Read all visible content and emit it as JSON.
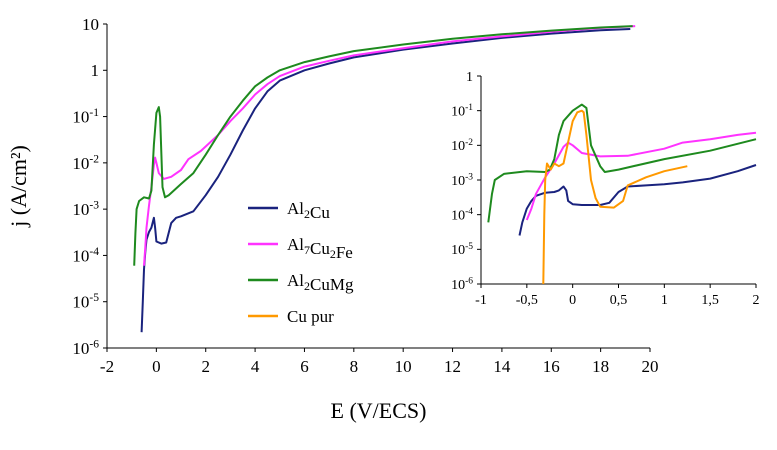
{
  "chart_data": [
    {
      "type": "line",
      "scale_y": "log",
      "xlabel": "E (V/ECS)",
      "ylabel": "j (A/cm²)",
      "xlim": [
        -2,
        20
      ],
      "ylim": [
        1e-06,
        10
      ],
      "x_ticks": [
        "-2",
        "0",
        "2",
        "4",
        "6",
        "8",
        "10",
        "12",
        "14",
        "16",
        "18",
        "20"
      ],
      "y_ticks": [
        {
          "base": "10",
          "exp": "-6"
        },
        {
          "base": "10",
          "exp": "-5"
        },
        {
          "base": "10",
          "exp": "-4"
        },
        {
          "base": "10",
          "exp": "-3"
        },
        {
          "base": "10",
          "exp": "-2"
        },
        {
          "base": "10",
          "exp": "-1"
        },
        {
          "base": "1",
          "exp": ""
        },
        {
          "base": "10",
          "exp": ""
        }
      ],
      "grid": false,
      "legend_position": "center",
      "legend": [
        {
          "parts": [
            {
              "t": "Al"
            },
            {
              "t": "2",
              "sub": true
            },
            {
              "t": "Cu"
            }
          ],
          "color": "#1a237e"
        },
        {
          "parts": [
            {
              "t": "Al"
            },
            {
              "t": "7",
              "sub": true
            },
            {
              "t": "Cu"
            },
            {
              "t": "2",
              "sub": true
            },
            {
              "t": "Fe"
            }
          ],
          "color": "#ff33ff"
        },
        {
          "parts": [
            {
              "t": "Al"
            },
            {
              "t": "2",
              "sub": true
            },
            {
              "t": "CuMg"
            }
          ],
          "color": "#1e8a1e"
        },
        {
          "parts": [
            {
              "t": "Cu pur"
            }
          ],
          "color": "#ff9900"
        }
      ],
      "series": [
        {
          "color": "#1a237e",
          "points": [
            [
              -0.6,
              2.2e-06
            ],
            [
              -0.55,
              1e-05
            ],
            [
              -0.5,
              5e-05
            ],
            [
              -0.45,
              0.00012
            ],
            [
              -0.4,
              0.00022
            ],
            [
              -0.3,
              0.00032
            ],
            [
              -0.2,
              0.0004
            ],
            [
              -0.1,
              0.00065
            ],
            [
              -0.05,
              0.0004
            ],
            [
              0,
              0.0002
            ],
            [
              0.2,
              0.00018
            ],
            [
              0.4,
              0.00019
            ],
            [
              0.6,
              0.0005
            ],
            [
              0.8,
              0.00065
            ],
            [
              1,
              0.0007
            ],
            [
              1.5,
              0.0009
            ],
            [
              2,
              0.002
            ],
            [
              2.5,
              0.005
            ],
            [
              3,
              0.015
            ],
            [
              3.5,
              0.05
            ],
            [
              4,
              0.15
            ],
            [
              4.5,
              0.35
            ],
            [
              5,
              0.6
            ],
            [
              6,
              1.0
            ],
            [
              7,
              1.4
            ],
            [
              8,
              1.9
            ],
            [
              10,
              2.8
            ],
            [
              12,
              3.8
            ],
            [
              14,
              5
            ],
            [
              16,
              6.2
            ],
            [
              18,
              7.3
            ],
            [
              19.2,
              7.8
            ]
          ]
        },
        {
          "color": "#ff33ff",
          "points": [
            [
              -0.5,
              6e-05
            ],
            [
              -0.45,
              0.00015
            ],
            [
              -0.4,
              0.0004
            ],
            [
              -0.3,
              0.0012
            ],
            [
              -0.2,
              0.003
            ],
            [
              -0.1,
              0.009
            ],
            [
              -0.05,
              0.013
            ],
            [
              0,
              0.01
            ],
            [
              0.1,
              0.006
            ],
            [
              0.3,
              0.0045
            ],
            [
              0.6,
              0.005
            ],
            [
              1,
              0.007
            ],
            [
              1.3,
              0.012
            ],
            [
              1.8,
              0.018
            ],
            [
              2.5,
              0.04
            ],
            [
              3,
              0.08
            ],
            [
              3.5,
              0.15
            ],
            [
              4,
              0.3
            ],
            [
              4.5,
              0.5
            ],
            [
              5,
              0.75
            ],
            [
              6,
              1.2
            ],
            [
              7,
              1.6
            ],
            [
              8,
              2.1
            ],
            [
              10,
              3
            ],
            [
              12,
              4.2
            ],
            [
              14,
              5.4
            ],
            [
              16,
              6.8
            ],
            [
              18,
              8.2
            ],
            [
              19.4,
              9
            ]
          ]
        },
        {
          "color": "#1e8a1e",
          "points": [
            [
              -0.9,
              6e-05
            ],
            [
              -0.85,
              0.0003
            ],
            [
              -0.8,
              0.001
            ],
            [
              -0.7,
              0.0015
            ],
            [
              -0.5,
              0.0018
            ],
            [
              -0.3,
              0.0017
            ],
            [
              -0.2,
              0.0025
            ],
            [
              -0.1,
              0.025
            ],
            [
              0,
              0.12
            ],
            [
              0.1,
              0.16
            ],
            [
              0.15,
              0.1
            ],
            [
              0.25,
              0.003
            ],
            [
              0.35,
              0.0018
            ],
            [
              0.5,
              0.002
            ],
            [
              1,
              0.0035
            ],
            [
              1.5,
              0.006
            ],
            [
              2,
              0.015
            ],
            [
              2.5,
              0.04
            ],
            [
              3,
              0.1
            ],
            [
              3.5,
              0.22
            ],
            [
              4,
              0.45
            ],
            [
              4.5,
              0.7
            ],
            [
              5,
              1.0
            ],
            [
              6,
              1.5
            ],
            [
              7,
              2
            ],
            [
              8,
              2.6
            ],
            [
              10,
              3.6
            ],
            [
              12,
              4.8
            ],
            [
              14,
              6
            ],
            [
              16,
              7.2
            ],
            [
              18,
              8.4
            ],
            [
              19.3,
              9
            ]
          ]
        }
      ]
    },
    {
      "type": "line",
      "scale_y": "log",
      "xlim": [
        -1,
        2
      ],
      "ylim": [
        1e-06,
        1
      ],
      "x_ticks": [
        "-1",
        "-0,5",
        "0",
        "0,5",
        "1",
        "1,5",
        "2"
      ],
      "y_ticks": [
        {
          "base": "10",
          "exp": "-6"
        },
        {
          "base": "10",
          "exp": "-5"
        },
        {
          "base": "10",
          "exp": "-4"
        },
        {
          "base": "10",
          "exp": "-3"
        },
        {
          "base": "10",
          "exp": "-2"
        },
        {
          "base": "10",
          "exp": "-1"
        },
        {
          "base": "1",
          "exp": ""
        }
      ],
      "grid": false,
      "series": [
        {
          "color": "#1a237e",
          "points": [
            [
              -0.58,
              2.5e-05
            ],
            [
              -0.55,
              6e-05
            ],
            [
              -0.5,
              0.00015
            ],
            [
              -0.45,
              0.00025
            ],
            [
              -0.4,
              0.00035
            ],
            [
              -0.3,
              0.00043
            ],
            [
              -0.2,
              0.00045
            ],
            [
              -0.15,
              0.0005
            ],
            [
              -0.1,
              0.00065
            ],
            [
              -0.07,
              0.0005
            ],
            [
              -0.05,
              0.00025
            ],
            [
              0,
              0.0002
            ],
            [
              0.1,
              0.00019
            ],
            [
              0.3,
              0.00019
            ],
            [
              0.4,
              0.00022
            ],
            [
              0.5,
              0.00045
            ],
            [
              0.6,
              0.00065
            ],
            [
              0.8,
              0.0007
            ],
            [
              1,
              0.00075
            ],
            [
              1.2,
              0.00085
            ],
            [
              1.5,
              0.0011
            ],
            [
              1.8,
              0.0018
            ],
            [
              2,
              0.0027
            ]
          ]
        },
        {
          "color": "#ff33ff",
          "points": [
            [
              -0.5,
              7e-05
            ],
            [
              -0.45,
              0.00015
            ],
            [
              -0.4,
              0.0004
            ],
            [
              -0.3,
              0.0012
            ],
            [
              -0.2,
              0.003
            ],
            [
              -0.1,
              0.009
            ],
            [
              -0.05,
              0.012
            ],
            [
              0,
              0.01
            ],
            [
              0.1,
              0.006
            ],
            [
              0.3,
              0.0048
            ],
            [
              0.6,
              0.005
            ],
            [
              1,
              0.008
            ],
            [
              1.2,
              0.012
            ],
            [
              1.5,
              0.015
            ],
            [
              1.8,
              0.02
            ],
            [
              2,
              0.023
            ]
          ]
        },
        {
          "color": "#1e8a1e",
          "points": [
            [
              -0.92,
              6e-05
            ],
            [
              -0.88,
              0.0004
            ],
            [
              -0.85,
              0.001
            ],
            [
              -0.75,
              0.0015
            ],
            [
              -0.5,
              0.0018
            ],
            [
              -0.3,
              0.0017
            ],
            [
              -0.25,
              0.002
            ],
            [
              -0.2,
              0.004
            ],
            [
              -0.15,
              0.02
            ],
            [
              -0.1,
              0.05
            ],
            [
              0,
              0.1
            ],
            [
              0.1,
              0.15
            ],
            [
              0.15,
              0.12
            ],
            [
              0.2,
              0.01
            ],
            [
              0.3,
              0.0025
            ],
            [
              0.35,
              0.0017
            ],
            [
              0.5,
              0.002
            ],
            [
              1,
              0.004
            ],
            [
              1.5,
              0.007
            ],
            [
              2,
              0.015
            ]
          ]
        },
        {
          "color": "#ff9900",
          "points": [
            [
              -0.32,
              1e-06
            ],
            [
              -0.31,
              0.0001
            ],
            [
              -0.3,
              0.001
            ],
            [
              -0.28,
              0.003
            ],
            [
              -0.24,
              0.002
            ],
            [
              -0.2,
              0.003
            ],
            [
              -0.15,
              0.0025
            ],
            [
              -0.1,
              0.003
            ],
            [
              0,
              0.05
            ],
            [
              0.05,
              0.09
            ],
            [
              0.1,
              0.1
            ],
            [
              0.12,
              0.09
            ],
            [
              0.15,
              0.02
            ],
            [
              0.2,
              0.001
            ],
            [
              0.25,
              0.0003
            ],
            [
              0.3,
              0.00017
            ],
            [
              0.45,
              0.00016
            ],
            [
              0.55,
              0.00025
            ],
            [
              0.6,
              0.0007
            ],
            [
              0.8,
              0.0012
            ],
            [
              1,
              0.0018
            ],
            [
              1.25,
              0.0025
            ]
          ]
        }
      ]
    }
  ]
}
